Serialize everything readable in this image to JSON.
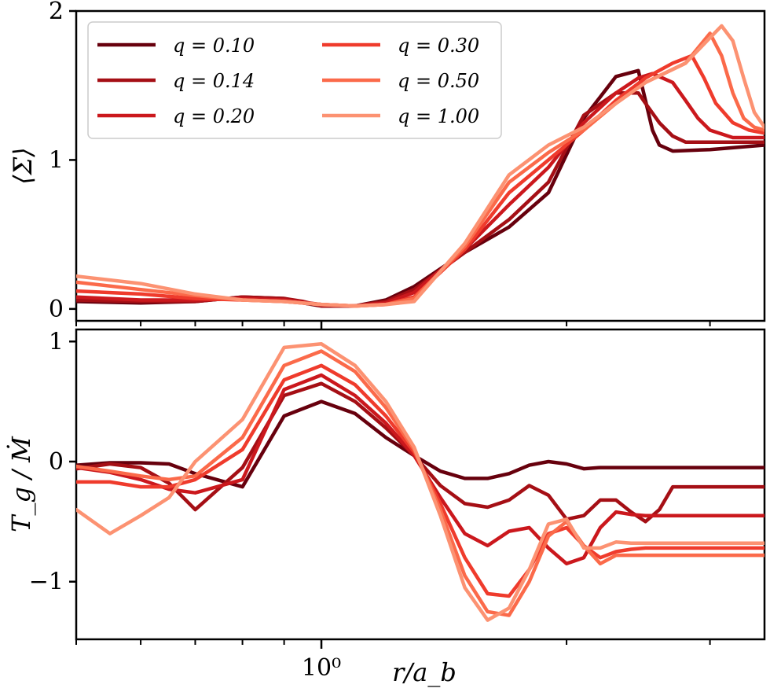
{
  "chart_data": [
    {
      "type": "line",
      "panel": "top",
      "ylabel": "⟨Σ⟩",
      "xlabel": "",
      "xscale": "log",
      "xlim": [
        0.5,
        3.5
      ],
      "ylim": [
        -0.08,
        2.0
      ],
      "yticks": [
        0,
        1,
        2
      ],
      "ytick_labels": [
        "0",
        "1",
        "2"
      ],
      "legend": {
        "placement": "upper-left",
        "columns": 2
      },
      "series": [
        {
          "name": "q = 0.10",
          "label": "q = 0.10",
          "color": "#67000d",
          "x": [
            0.5,
            0.6,
            0.7,
            0.8,
            0.9,
            0.95,
            1.0,
            1.1,
            1.2,
            1.3,
            1.5,
            1.7,
            1.9,
            2.1,
            2.3,
            2.45,
            2.5,
            2.55,
            2.6,
            2.7,
            3.0,
            3.5
          ],
          "y": [
            0.05,
            0.04,
            0.05,
            0.08,
            0.07,
            0.04,
            0.02,
            0.02,
            0.06,
            0.15,
            0.38,
            0.55,
            0.78,
            1.28,
            1.56,
            1.6,
            1.4,
            1.2,
            1.1,
            1.06,
            1.07,
            1.1
          ]
        },
        {
          "name": "q = 0.14",
          "label": "q = 0.14",
          "color": "#a50f15",
          "x": [
            0.5,
            0.6,
            0.7,
            0.8,
            0.9,
            0.95,
            1.0,
            1.1,
            1.2,
            1.3,
            1.5,
            1.7,
            1.9,
            2.1,
            2.3,
            2.45,
            2.5,
            2.6,
            2.7,
            2.8,
            3.0,
            3.5
          ],
          "y": [
            0.06,
            0.05,
            0.05,
            0.08,
            0.07,
            0.05,
            0.02,
            0.02,
            0.05,
            0.13,
            0.38,
            0.6,
            0.85,
            1.3,
            1.45,
            1.45,
            1.38,
            1.25,
            1.16,
            1.12,
            1.12,
            1.12
          ]
        },
        {
          "name": "q = 0.20",
          "label": "q = 0.20",
          "color": "#cb181d",
          "x": [
            0.5,
            0.6,
            0.7,
            0.8,
            0.9,
            1.0,
            1.1,
            1.2,
            1.3,
            1.5,
            1.7,
            1.9,
            2.1,
            2.3,
            2.45,
            2.55,
            2.7,
            2.8,
            2.9,
            3.0,
            3.2,
            3.5
          ],
          "y": [
            0.08,
            0.06,
            0.06,
            0.07,
            0.06,
            0.03,
            0.02,
            0.04,
            0.11,
            0.4,
            0.7,
            0.95,
            1.25,
            1.45,
            1.55,
            1.58,
            1.52,
            1.4,
            1.28,
            1.2,
            1.15,
            1.15
          ]
        },
        {
          "name": "q = 0.30",
          "label": "q = 0.30",
          "color": "#ef3b2c",
          "x": [
            0.5,
            0.6,
            0.7,
            0.8,
            0.9,
            1.0,
            1.1,
            1.2,
            1.3,
            1.5,
            1.7,
            1.9,
            2.1,
            2.3,
            2.5,
            2.7,
            2.85,
            2.95,
            3.05,
            3.2,
            3.35,
            3.5
          ],
          "y": [
            0.12,
            0.1,
            0.07,
            0.06,
            0.05,
            0.03,
            0.02,
            0.03,
            0.08,
            0.4,
            0.78,
            1.0,
            1.2,
            1.4,
            1.55,
            1.65,
            1.7,
            1.55,
            1.38,
            1.25,
            1.2,
            1.18
          ]
        },
        {
          "name": "q = 0.50",
          "label": "q = 0.50",
          "color": "#fb6a4a",
          "x": [
            0.5,
            0.6,
            0.7,
            0.8,
            0.9,
            1.0,
            1.1,
            1.2,
            1.3,
            1.5,
            1.7,
            1.9,
            2.1,
            2.3,
            2.5,
            2.8,
            3.0,
            3.1,
            3.2,
            3.3,
            3.4,
            3.5
          ],
          "y": [
            0.18,
            0.13,
            0.09,
            0.06,
            0.05,
            0.03,
            0.02,
            0.03,
            0.07,
            0.42,
            0.85,
            1.05,
            1.2,
            1.38,
            1.52,
            1.65,
            1.85,
            1.7,
            1.45,
            1.28,
            1.22,
            1.2
          ]
        },
        {
          "name": "q = 1.00",
          "label": "q = 1.00",
          "color": "#fc9272",
          "x": [
            0.5,
            0.6,
            0.7,
            0.8,
            0.9,
            1.0,
            1.1,
            1.2,
            1.3,
            1.5,
            1.7,
            1.9,
            2.1,
            2.3,
            2.5,
            2.8,
            3.0,
            3.1,
            3.2,
            3.3,
            3.4,
            3.5
          ],
          "y": [
            0.22,
            0.17,
            0.1,
            0.06,
            0.05,
            0.03,
            0.02,
            0.03,
            0.05,
            0.44,
            0.9,
            1.1,
            1.22,
            1.38,
            1.52,
            1.65,
            1.82,
            1.9,
            1.8,
            1.55,
            1.32,
            1.22
          ]
        }
      ]
    },
    {
      "type": "line",
      "panel": "bottom",
      "ylabel": "T_g / Ṁ",
      "xlabel": "r/a_b",
      "xscale": "log",
      "xlim": [
        0.5,
        3.5
      ],
      "ylim": [
        -1.48,
        1.1
      ],
      "yticks": [
        1,
        0,
        -1
      ],
      "ytick_labels": [
        "1",
        "0",
        "−1"
      ],
      "xtick_major": [
        1.0
      ],
      "xtick_major_labels": [
        "10⁰"
      ],
      "xtick_minor": [
        0.5,
        0.6,
        0.7,
        0.8,
        0.9,
        2,
        3
      ],
      "series": [
        {
          "name": "q = 0.10",
          "color": "#67000d",
          "x": [
            0.5,
            0.55,
            0.6,
            0.65,
            0.7,
            0.8,
            0.9,
            1.0,
            1.1,
            1.2,
            1.3,
            1.4,
            1.5,
            1.6,
            1.7,
            1.8,
            1.9,
            2.0,
            2.1,
            2.2,
            2.3,
            2.4,
            2.5,
            2.6,
            2.7,
            2.8,
            2.9,
            3.0,
            3.2,
            3.5
          ],
          "y": [
            -0.03,
            -0.01,
            -0.01,
            -0.02,
            -0.1,
            -0.21,
            0.38,
            0.5,
            0.4,
            0.2,
            0.05,
            -0.08,
            -0.14,
            -0.14,
            -0.1,
            -0.03,
            0,
            -0.02,
            -0.06,
            -0.05,
            -0.05,
            -0.05,
            -0.05,
            -0.05,
            -0.05,
            -0.05,
            -0.05,
            -0.05,
            -0.05,
            -0.05
          ]
        },
        {
          "name": "q = 0.14",
          "color": "#a50f15",
          "x": [
            0.5,
            0.55,
            0.6,
            0.65,
            0.7,
            0.8,
            0.9,
            1.0,
            1.1,
            1.2,
            1.3,
            1.4,
            1.5,
            1.6,
            1.7,
            1.8,
            1.9,
            2.0,
            2.1,
            2.2,
            2.3,
            2.4,
            2.5,
            2.6,
            2.7,
            2.8,
            2.9,
            3.0,
            3.2,
            3.5
          ],
          "y": [
            -0.06,
            -0.02,
            -0.05,
            -0.18,
            -0.4,
            -0.05,
            0.55,
            0.65,
            0.5,
            0.28,
            0.05,
            -0.2,
            -0.35,
            -0.38,
            -0.32,
            -0.2,
            -0.28,
            -0.48,
            -0.45,
            -0.32,
            -0.32,
            -0.42,
            -0.5,
            -0.4,
            -0.21,
            -0.21,
            -0.21,
            -0.21,
            -0.21,
            -0.21
          ]
        },
        {
          "name": "q = 0.20",
          "color": "#cb181d",
          "x": [
            0.5,
            0.55,
            0.6,
            0.65,
            0.7,
            0.8,
            0.9,
            1.0,
            1.1,
            1.2,
            1.3,
            1.4,
            1.5,
            1.6,
            1.7,
            1.8,
            1.9,
            2.0,
            2.1,
            2.2,
            2.3,
            2.4,
            2.5,
            2.6,
            2.7,
            2.8,
            2.9,
            3.0,
            3.2,
            3.5
          ],
          "y": [
            -0.05,
            -0.09,
            -0.15,
            -0.23,
            -0.26,
            -0.15,
            0.6,
            0.72,
            0.55,
            0.32,
            0.05,
            -0.3,
            -0.6,
            -0.7,
            -0.58,
            -0.55,
            -0.72,
            -0.85,
            -0.8,
            -0.55,
            -0.42,
            -0.44,
            -0.45,
            -0.45,
            -0.45,
            -0.45,
            -0.45,
            -0.45,
            -0.45,
            -0.45
          ]
        },
        {
          "name": "q = 0.30",
          "color": "#ef3b2c",
          "x": [
            0.5,
            0.55,
            0.6,
            0.65,
            0.7,
            0.8,
            0.9,
            1.0,
            1.1,
            1.2,
            1.3,
            1.4,
            1.5,
            1.6,
            1.7,
            1.8,
            1.9,
            2.0,
            2.1,
            2.2,
            2.3,
            2.4,
            2.5,
            2.6,
            2.7,
            2.8,
            2.9,
            3.0,
            3.2,
            3.5
          ],
          "y": [
            -0.17,
            -0.17,
            -0.21,
            -0.21,
            -0.15,
            0.1,
            0.68,
            0.8,
            0.64,
            0.38,
            0.08,
            -0.35,
            -0.8,
            -1.1,
            -1.12,
            -0.9,
            -0.6,
            -0.55,
            -0.7,
            -0.8,
            -0.75,
            -0.73,
            -0.72,
            -0.72,
            -0.72,
            -0.72,
            -0.72,
            -0.72,
            -0.72,
            -0.72
          ]
        },
        {
          "name": "q = 0.50",
          "color": "#fb6a4a",
          "x": [
            0.5,
            0.55,
            0.6,
            0.65,
            0.7,
            0.8,
            0.9,
            1.0,
            1.1,
            1.2,
            1.3,
            1.4,
            1.5,
            1.6,
            1.7,
            1.8,
            1.9,
            2.0,
            2.1,
            2.2,
            2.3,
            2.4,
            2.5,
            2.6,
            2.7,
            2.8,
            2.9,
            3.0,
            3.2,
            3.5
          ],
          "y": [
            -0.04,
            -0.08,
            -0.12,
            -0.15,
            -0.12,
            0.2,
            0.8,
            0.92,
            0.75,
            0.45,
            0.1,
            -0.4,
            -0.95,
            -1.25,
            -1.28,
            -1.0,
            -0.62,
            -0.5,
            -0.7,
            -0.85,
            -0.78,
            -0.78,
            -0.78,
            -0.78,
            -0.78,
            -0.78,
            -0.78,
            -0.78,
            -0.78,
            -0.78
          ]
        },
        {
          "name": "q = 1.00",
          "color": "#fc9272",
          "x": [
            0.5,
            0.55,
            0.6,
            0.65,
            0.7,
            0.8,
            0.9,
            1.0,
            1.1,
            1.2,
            1.3,
            1.4,
            1.5,
            1.6,
            1.7,
            1.8,
            1.9,
            2.0,
            2.1,
            2.2,
            2.3,
            2.4,
            2.5,
            2.6,
            2.7,
            2.8,
            2.9,
            3.0,
            3.2,
            3.5
          ],
          "y": [
            -0.4,
            -0.6,
            -0.45,
            -0.3,
            0.0,
            0.35,
            0.95,
            0.98,
            0.8,
            0.5,
            0.12,
            -0.45,
            -1.05,
            -1.32,
            -1.22,
            -0.9,
            -0.52,
            -0.48,
            -0.72,
            -0.72,
            -0.67,
            -0.68,
            -0.68,
            -0.68,
            -0.68,
            -0.68,
            -0.68,
            -0.68,
            -0.68,
            -0.68
          ]
        }
      ]
    }
  ]
}
